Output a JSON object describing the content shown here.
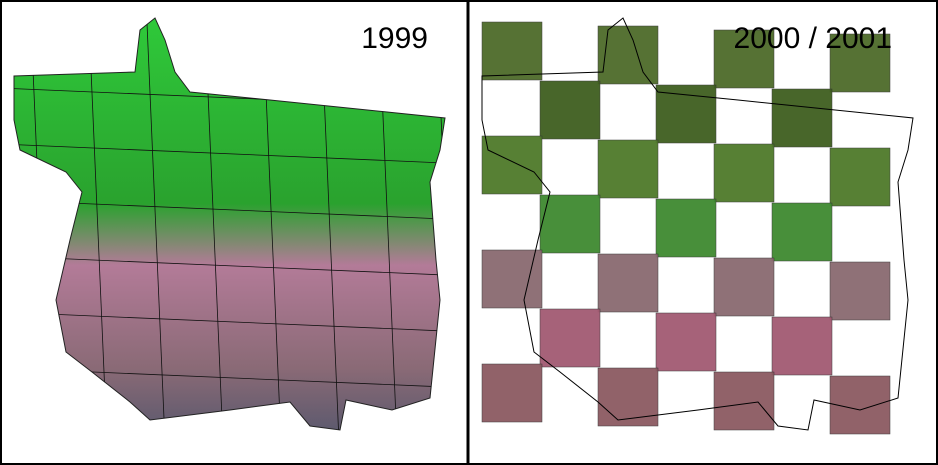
{
  "panels": [
    {
      "label": "1999"
    },
    {
      "label": "2000 / 2001"
    }
  ]
}
